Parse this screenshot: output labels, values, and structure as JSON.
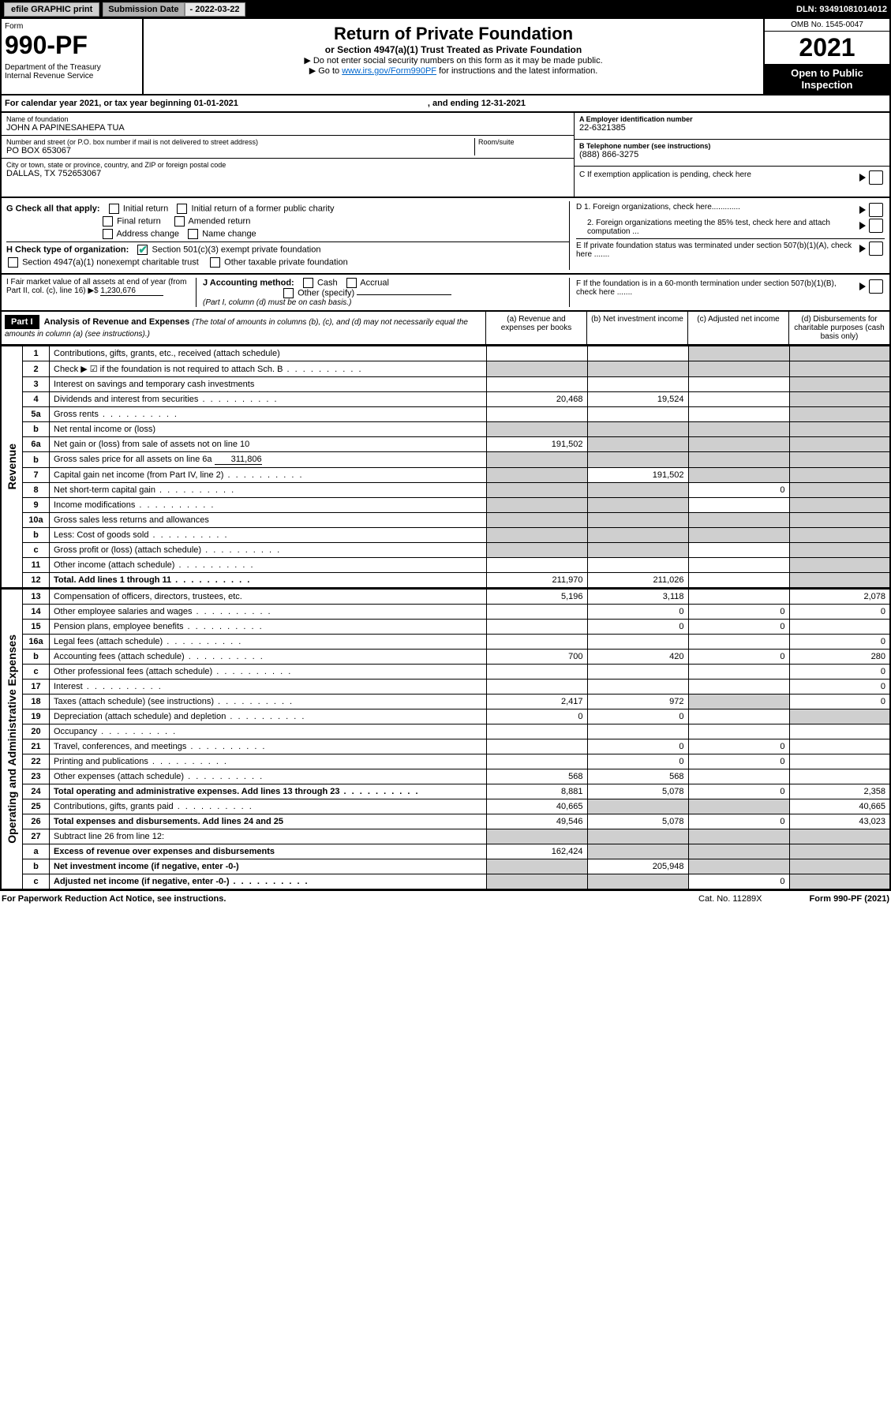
{
  "topbar": {
    "efile": "efile GRAPHIC print",
    "sub_label": "Submission Date",
    "sub_date": "- 2022-03-22",
    "dln": "DLN: 93491081014012"
  },
  "header": {
    "form_label": "Form",
    "form_num": "990-PF",
    "dept": "Department of the Treasury\nInternal Revenue Service",
    "title": "Return of Private Foundation",
    "or_line": "or Section 4947(a)(1) Trust Treated as Private Foundation",
    "instr1": "▶ Do not enter social security numbers on this form as it may be made public.",
    "instr2_pre": "▶ Go to ",
    "instr2_link": "www.irs.gov/Form990PF",
    "instr2_post": " for instructions and the latest information.",
    "omb": "OMB No. 1545-0047",
    "year": "2021",
    "open": "Open to Public Inspection"
  },
  "cal": {
    "text1": "For calendar year 2021, or tax year beginning 01-01-2021",
    "text2": ", and ending 12-31-2021"
  },
  "info": {
    "name_label": "Name of foundation",
    "name": "JOHN A PAPINESAHEPA TUA",
    "addr_label": "Number and street (or P.O. box number if mail is not delivered to street address)",
    "addr": "PO BOX 653067",
    "room_label": "Room/suite",
    "city_label": "City or town, state or province, country, and ZIP or foreign postal code",
    "city": "DALLAS, TX  752653067",
    "ein_label": "A Employer identification number",
    "ein": "22-6321385",
    "tel_label": "B Telephone number (see instructions)",
    "tel": "(888) 866-3275",
    "c_label": "C If exemption application is pending, check here",
    "d1": "D 1. Foreign organizations, check here.............",
    "d2": "2. Foreign organizations meeting the 85% test, check here and attach computation ...",
    "e_label": "E  If private foundation status was terminated under section 507(b)(1)(A), check here .......",
    "f_label": "F  If the foundation is in a 60-month termination under section 507(b)(1)(B), check here ......."
  },
  "g": {
    "label": "G Check all that apply:",
    "o1": "Initial return",
    "o2": "Initial return of a former public charity",
    "o3": "Final return",
    "o4": "Amended return",
    "o5": "Address change",
    "o6": "Name change"
  },
  "h": {
    "label": "H Check type of organization:",
    "o1": "Section 501(c)(3) exempt private foundation",
    "o2": "Section 4947(a)(1) nonexempt charitable trust",
    "o3": "Other taxable private foundation"
  },
  "i": {
    "label": "I Fair market value of all assets at end of year (from Part II, col. (c), line 16) ▶$",
    "val": "1,230,676"
  },
  "j": {
    "label": "J Accounting method:",
    "o1": "Cash",
    "o2": "Accrual",
    "o3": "Other (specify)",
    "note": "(Part I, column (d) must be on cash basis.)"
  },
  "part1": {
    "label": "Part I",
    "title": "Analysis of Revenue and Expenses",
    "subtitle": "(The total of amounts in columns (b), (c), and (d) may not necessarily equal the amounts in column (a) (see instructions).)",
    "cola": "(a)  Revenue and expenses per books",
    "colb": "(b)  Net investment income",
    "colc": "(c)  Adjusted net income",
    "cold": "(d)  Disbursements for charitable purposes (cash basis only)"
  },
  "side": {
    "revenue": "Revenue",
    "expenses": "Operating and Administrative Expenses"
  },
  "rows": [
    {
      "n": "1",
      "d": "Contributions, gifts, grants, etc., received (attach schedule)",
      "a": "",
      "b": "",
      "c": "s",
      "dcol": "s"
    },
    {
      "n": "2",
      "d": "Check ▶ ☑ if the foundation is not required to attach Sch. B",
      "dots": true,
      "a": "s",
      "b": "s",
      "c": "s",
      "dcol": "s"
    },
    {
      "n": "3",
      "d": "Interest on savings and temporary cash investments",
      "a": "",
      "b": "",
      "c": "",
      "dcol": "s"
    },
    {
      "n": "4",
      "d": "Dividends and interest from securities",
      "dots": true,
      "a": "20,468",
      "b": "19,524",
      "c": "",
      "dcol": "s"
    },
    {
      "n": "5a",
      "d": "Gross rents",
      "dots": true,
      "a": "",
      "b": "",
      "c": "",
      "dcol": "s"
    },
    {
      "n": "b",
      "d": "Net rental income or (loss)",
      "inset": true,
      "a": "s",
      "b": "s",
      "c": "s",
      "dcol": "s"
    },
    {
      "n": "6a",
      "d": "Net gain or (loss) from sale of assets not on line 10",
      "a": "191,502",
      "b": "s",
      "c": "s",
      "dcol": "s"
    },
    {
      "n": "b",
      "d": "Gross sales price for all assets on line 6a",
      "inset": true,
      "iv": "311,806",
      "a": "s",
      "b": "s",
      "c": "s",
      "dcol": "s"
    },
    {
      "n": "7",
      "d": "Capital gain net income (from Part IV, line 2)",
      "dots": true,
      "a": "s",
      "b": "191,502",
      "c": "s",
      "dcol": "s"
    },
    {
      "n": "8",
      "d": "Net short-term capital gain",
      "dots": true,
      "a": "s",
      "b": "s",
      "c": "0",
      "dcol": "s"
    },
    {
      "n": "9",
      "d": "Income modifications",
      "dots": true,
      "a": "s",
      "b": "s",
      "c": "",
      "dcol": "s"
    },
    {
      "n": "10a",
      "d": "Gross sales less returns and allowances",
      "inset": true,
      "a": "s",
      "b": "s",
      "c": "s",
      "dcol": "s"
    },
    {
      "n": "b",
      "d": "Less: Cost of goods sold",
      "dots": true,
      "inset": true,
      "a": "s",
      "b": "s",
      "c": "s",
      "dcol": "s"
    },
    {
      "n": "c",
      "d": "Gross profit or (loss) (attach schedule)",
      "dots": true,
      "a": "s",
      "b": "s",
      "c": "",
      "dcol": "s"
    },
    {
      "n": "11",
      "d": "Other income (attach schedule)",
      "dots": true,
      "a": "",
      "b": "",
      "c": "",
      "dcol": "s"
    },
    {
      "n": "12",
      "d": "Total. Add lines 1 through 11",
      "dots": true,
      "bold": true,
      "a": "211,970",
      "b": "211,026",
      "c": "",
      "dcol": "s"
    }
  ],
  "rows2": [
    {
      "n": "13",
      "d": "Compensation of officers, directors, trustees, etc.",
      "a": "5,196",
      "b": "3,118",
      "c": "",
      "dcol": "2,078"
    },
    {
      "n": "14",
      "d": "Other employee salaries and wages",
      "dots": true,
      "a": "",
      "b": "0",
      "c": "0",
      "dcol": "0"
    },
    {
      "n": "15",
      "d": "Pension plans, employee benefits",
      "dots": true,
      "a": "",
      "b": "0",
      "c": "0",
      "dcol": ""
    },
    {
      "n": "16a",
      "d": "Legal fees (attach schedule)",
      "dots": true,
      "a": "",
      "b": "",
      "c": "",
      "dcol": "0"
    },
    {
      "n": "b",
      "d": "Accounting fees (attach schedule)",
      "dots": true,
      "a": "700",
      "b": "420",
      "c": "0",
      "dcol": "280"
    },
    {
      "n": "c",
      "d": "Other professional fees (attach schedule)",
      "dots": true,
      "a": "",
      "b": "",
      "c": "",
      "dcol": "0"
    },
    {
      "n": "17",
      "d": "Interest",
      "dots": true,
      "a": "",
      "b": "",
      "c": "",
      "dcol": "0"
    },
    {
      "n": "18",
      "d": "Taxes (attach schedule) (see instructions)",
      "dots": true,
      "a": "2,417",
      "b": "972",
      "c": "s",
      "dcol": "0"
    },
    {
      "n": "19",
      "d": "Depreciation (attach schedule) and depletion",
      "dots": true,
      "a": "0",
      "b": "0",
      "c": "",
      "dcol": "s"
    },
    {
      "n": "20",
      "d": "Occupancy",
      "dots": true,
      "a": "",
      "b": "",
      "c": "",
      "dcol": ""
    },
    {
      "n": "21",
      "d": "Travel, conferences, and meetings",
      "dots": true,
      "a": "",
      "b": "0",
      "c": "0",
      "dcol": ""
    },
    {
      "n": "22",
      "d": "Printing and publications",
      "dots": true,
      "a": "",
      "b": "0",
      "c": "0",
      "dcol": ""
    },
    {
      "n": "23",
      "d": "Other expenses (attach schedule)",
      "dots": true,
      "a": "568",
      "b": "568",
      "c": "",
      "dcol": ""
    },
    {
      "n": "24",
      "d": "Total operating and administrative expenses. Add lines 13 through 23",
      "dots": true,
      "bold": true,
      "a": "8,881",
      "b": "5,078",
      "c": "0",
      "dcol": "2,358"
    },
    {
      "n": "25",
      "d": "Contributions, gifts, grants paid",
      "dots": true,
      "a": "40,665",
      "b": "s",
      "c": "s",
      "dcol": "40,665"
    },
    {
      "n": "26",
      "d": "Total expenses and disbursements. Add lines 24 and 25",
      "bold": true,
      "a": "49,546",
      "b": "5,078",
      "c": "0",
      "dcol": "43,023"
    },
    {
      "n": "27",
      "d": "Subtract line 26 from line 12:",
      "a": "s",
      "b": "s",
      "c": "s",
      "dcol": "s"
    },
    {
      "n": "a",
      "d": "Excess of revenue over expenses and disbursements",
      "bold": true,
      "a": "162,424",
      "b": "s",
      "c": "s",
      "dcol": "s"
    },
    {
      "n": "b",
      "d": "Net investment income (if negative, enter -0-)",
      "bold": true,
      "a": "s",
      "b": "205,948",
      "c": "s",
      "dcol": "s"
    },
    {
      "n": "c",
      "d": "Adjusted net income (if negative, enter -0-)",
      "dots": true,
      "bold": true,
      "a": "s",
      "b": "s",
      "c": "0",
      "dcol": "s"
    }
  ],
  "footer": {
    "l": "For Paperwork Reduction Act Notice, see instructions.",
    "c": "Cat. No. 11289X",
    "r": "Form 990-PF (2021)"
  },
  "colors": {
    "shade": "#cfcfcf",
    "link": "#0066cc",
    "check": "#22aa77"
  }
}
